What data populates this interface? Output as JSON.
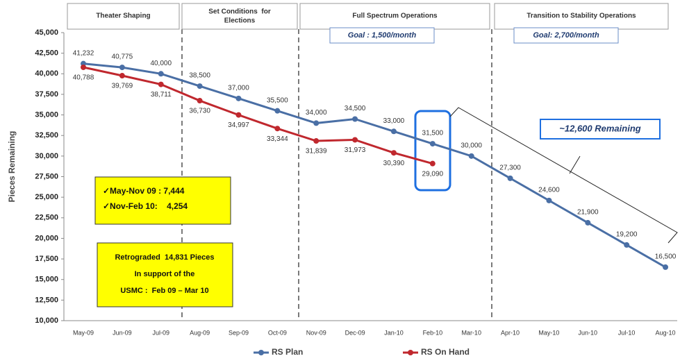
{
  "chart_data": {
    "type": "line",
    "ylabel": "Pieces Remaining",
    "categories": [
      "May-09",
      "Jun-09",
      "Jul-09",
      "Aug-09",
      "Sep-09",
      "Oct-09",
      "Nov-09",
      "Dec-09",
      "Jan-10",
      "Feb-10",
      "Mar-10",
      "Apr-10",
      "May-10",
      "Jun-10",
      "Jul-10",
      "Aug-10"
    ],
    "series": [
      {
        "name": "RS Plan",
        "color": "#4a6fa5",
        "values": [
          41232,
          40775,
          40000,
          38500,
          37000,
          35500,
          34000,
          34500,
          33000,
          31500,
          30000,
          27300,
          24600,
          21900,
          19200,
          16500
        ],
        "value_labels": [
          "41,232",
          "40,775",
          "40,000",
          "38,500",
          "37,000",
          "35,500",
          "34,000",
          "34,500",
          "33,000",
          "31,500",
          "30,000",
          "27,300",
          "24,600",
          "21,900",
          "19,200",
          "16,500"
        ]
      },
      {
        "name": "RS On Hand",
        "color": "#c0282e",
        "values": [
          40788,
          39769,
          38711,
          36730,
          34997,
          33344,
          31839,
          31973,
          30390,
          29090,
          null,
          null,
          null,
          null,
          null,
          null
        ],
        "value_labels": [
          "40,788",
          "39,769",
          "38,711",
          "36,730",
          "34,997",
          "33,344",
          "31,839",
          "31,973",
          "30,390",
          "29,090",
          null,
          null,
          null,
          null,
          null,
          null
        ]
      }
    ],
    "ylim": [
      10000,
      45000
    ],
    "yticks": [
      {
        "value": 10000,
        "label": "10,000"
      },
      {
        "value": 12500,
        "label": "12,500"
      },
      {
        "value": 15000,
        "label": "15,000"
      },
      {
        "value": 17500,
        "label": "17,500"
      },
      {
        "value": 20000,
        "label": "20,000"
      },
      {
        "value": 22500,
        "label": "22,500"
      },
      {
        "value": 25000,
        "label": "25,000"
      },
      {
        "value": 27500,
        "label": "27,500"
      },
      {
        "value": 30000,
        "label": "30,000"
      },
      {
        "value": 32500,
        "label": "32,500"
      },
      {
        "value": 35000,
        "label": "35,000"
      },
      {
        "value": 37500,
        "label": "37,500"
      },
      {
        "value": 40000,
        "label": "40,000"
      },
      {
        "value": 42500,
        "label": "42,500"
      },
      {
        "value": 45000,
        "label": "45,000"
      }
    ],
    "phases": [
      [
        "Theater Shaping"
      ],
      [
        "Set Conditions  for",
        "Elections"
      ],
      [
        "Full Spectrum Operations"
      ],
      [
        "Transition to Stability Operations"
      ]
    ],
    "goals": [
      "Goal : 1,500/month",
      "Goal: 2,700/month"
    ],
    "remaining": "~12,600 Remaining",
    "summary_box": [
      "✓May-Nov 09 : 7,444",
      "✓Nov-Feb 10:    4,254"
    ],
    "retrograde_box": [
      "Retrograded  14,831 Pieces",
      "In support of the",
      "USMC :  Feb 09 – Mar 10"
    ]
  }
}
